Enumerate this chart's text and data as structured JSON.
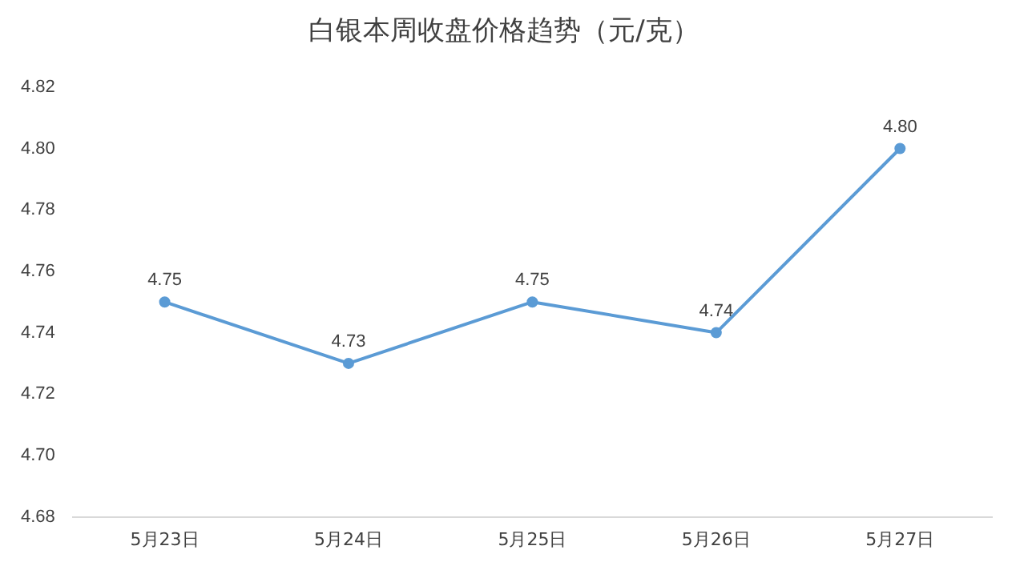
{
  "chart_data": {
    "type": "line",
    "title": "白银本周收盘价格趋势（元/克）",
    "categories": [
      "5月23日",
      "5月24日",
      "5月25日",
      "5月26日",
      "5月27日"
    ],
    "series": [
      {
        "color": "#5b9bd5",
        "values": [
          4.75,
          4.73,
          4.75,
          4.74,
          4.8
        ],
        "value_labels": [
          "4.75",
          "4.73",
          "4.75",
          "4.74",
          "4.80"
        ]
      }
    ],
    "ylim": [
      4.68,
      4.82
    ],
    "yticks": [
      4.68,
      {
        "value": 4.7,
        "label": "4.70"
      },
      4.72,
      4.74,
      4.76,
      4.78,
      {
        "value": 4.8,
        "label": "4.80"
      },
      4.82
    ],
    "grid": false,
    "legend": false,
    "marker": "circle",
    "line_style": "solid"
  }
}
